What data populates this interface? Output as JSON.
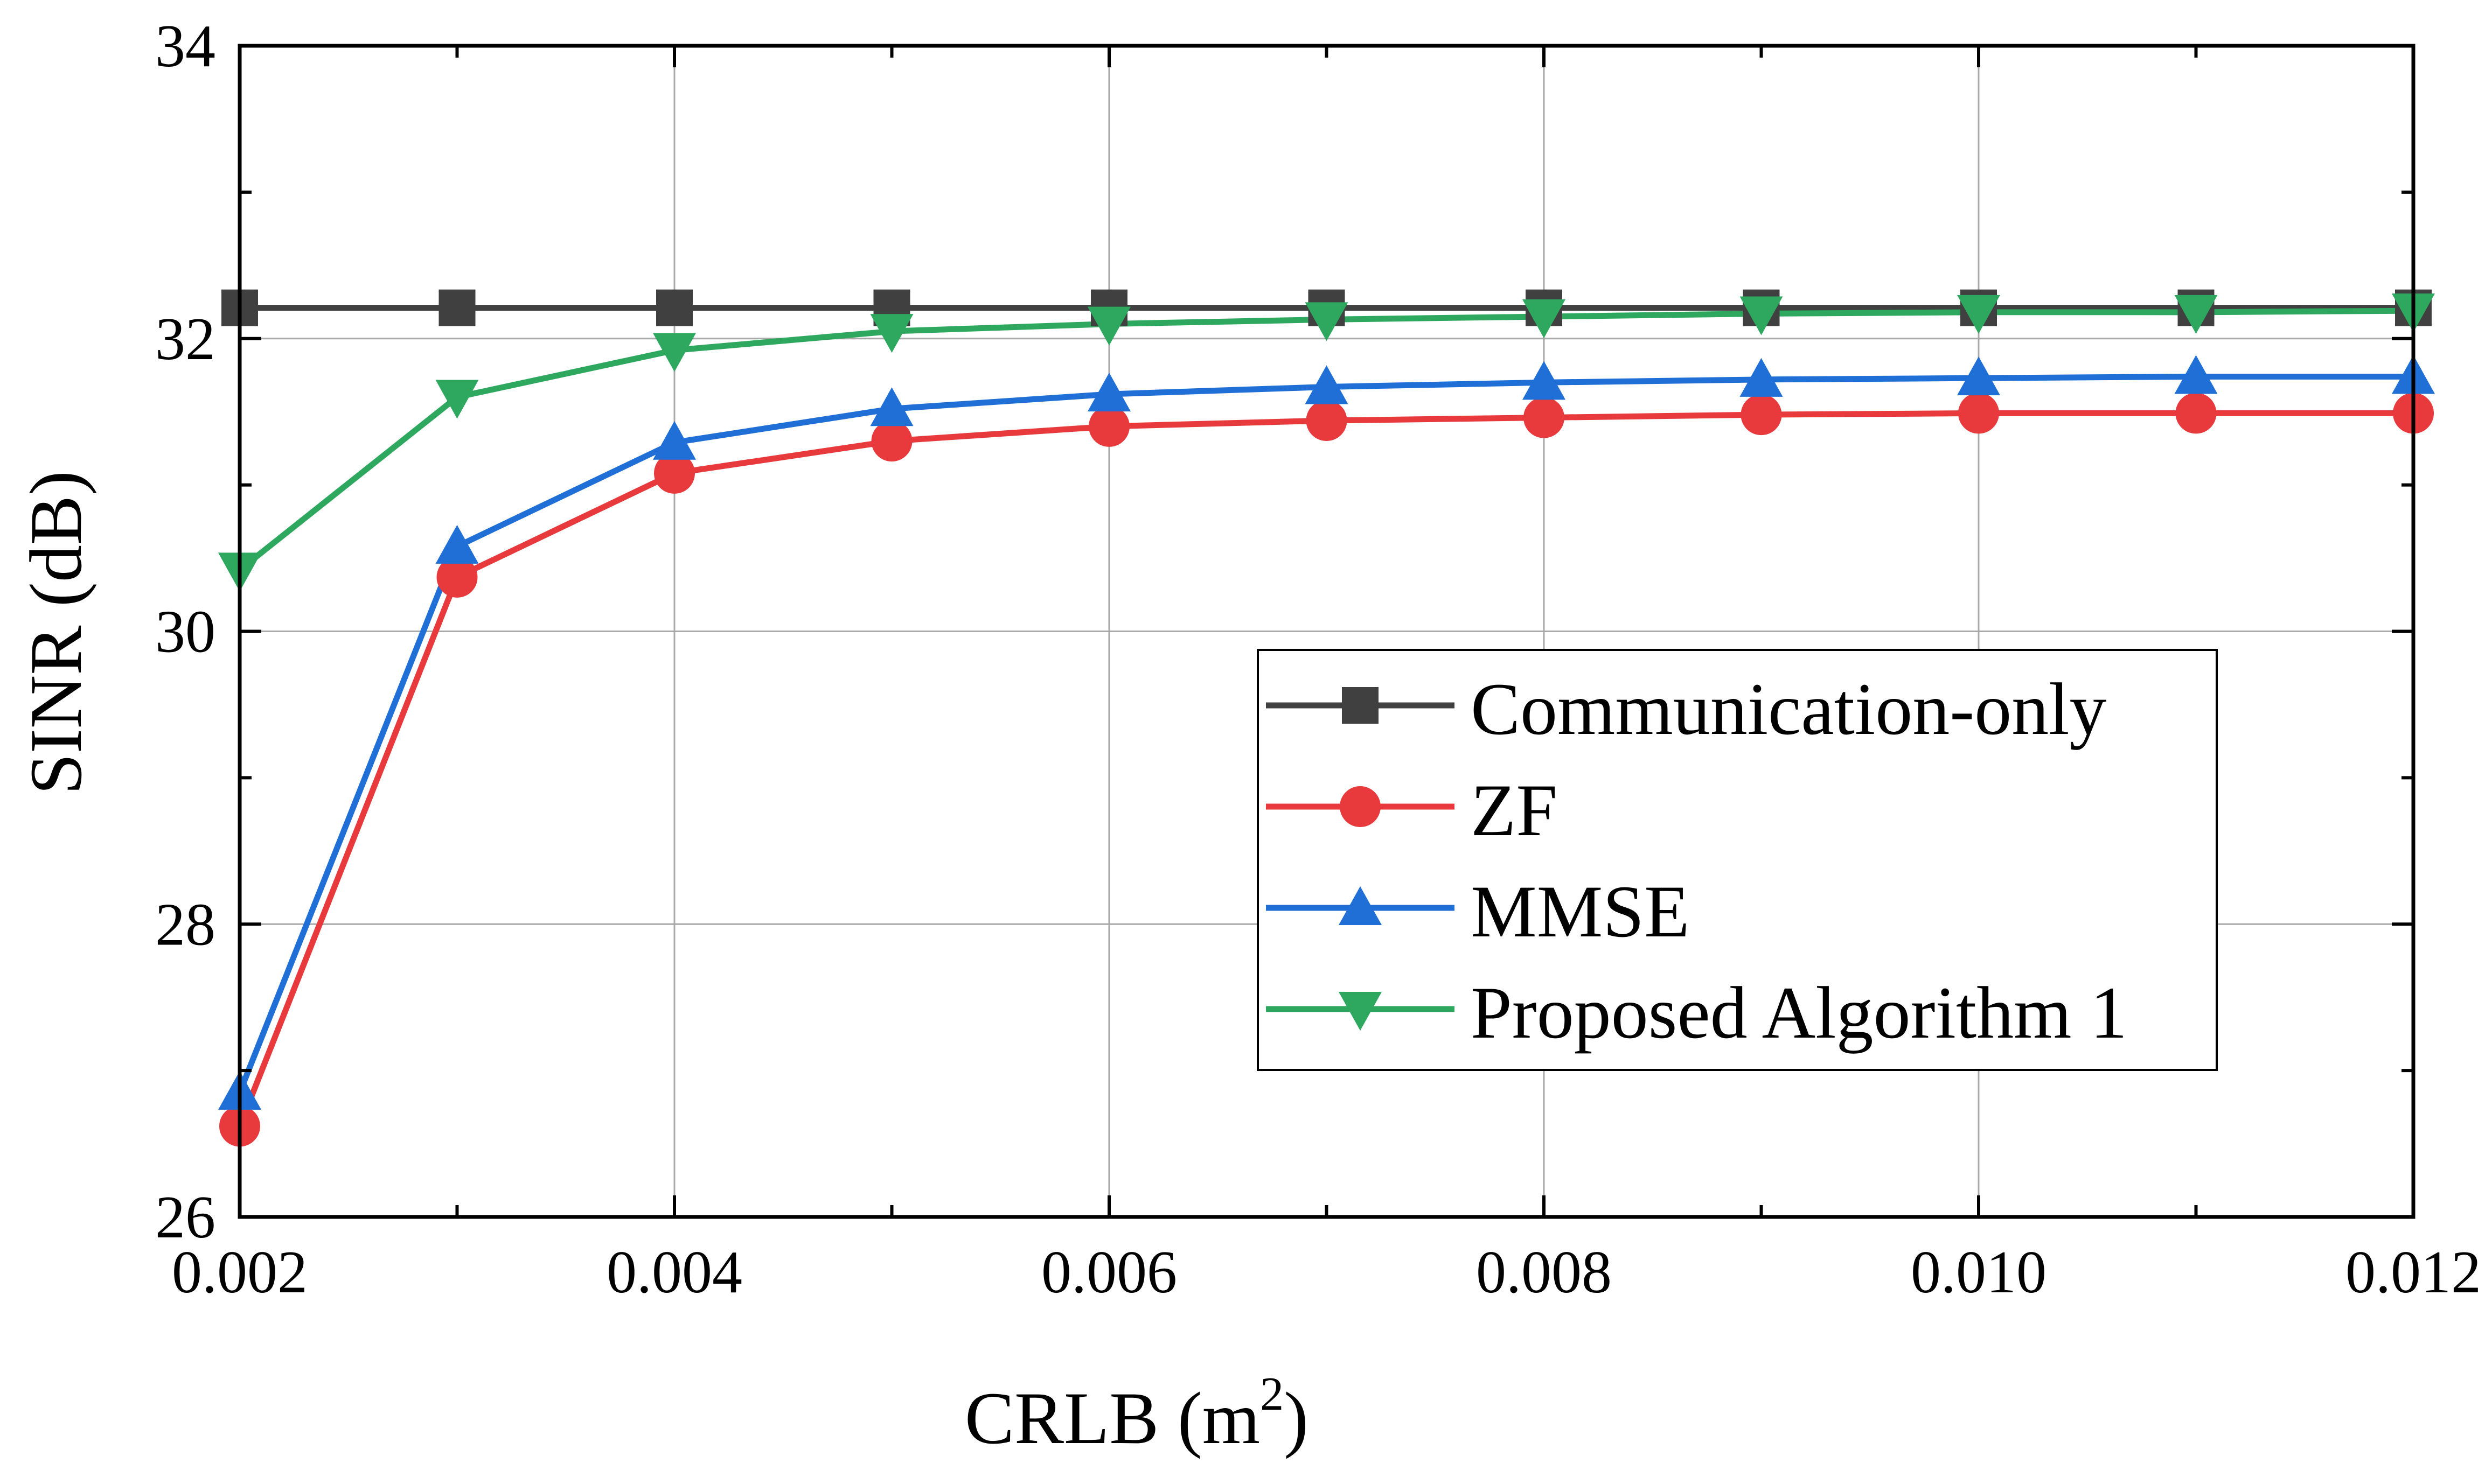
{
  "chart_data": {
    "type": "line",
    "title": "",
    "xlabel": "CRLB (m",
    "xlabel_sup": "2",
    "xlabel_tail": ")",
    "ylabel": "SINR (dB)",
    "xlim": [
      0.002,
      0.012
    ],
    "ylim": [
      26,
      34
    ],
    "grid": true,
    "x": [
      0.002,
      0.003,
      0.004,
      0.005,
      0.006,
      0.007,
      0.008,
      0.009,
      0.01,
      0.011,
      0.012
    ],
    "xticks": [
      0.002,
      0.004,
      0.006,
      0.008,
      0.01,
      0.012
    ],
    "xtick_labels": [
      "0.002",
      "0.004",
      "0.006",
      "0.008",
      "0.010",
      "0.012"
    ],
    "yticks": [
      26,
      28,
      30,
      32,
      34
    ],
    "ytick_labels": [
      "26",
      "28",
      "30",
      "32",
      "34"
    ],
    "legend_position": "center-right",
    "series": [
      {
        "name": "Communication-only",
        "color": "#404040",
        "marker": "square",
        "values": [
          32.21,
          32.21,
          32.21,
          32.21,
          32.21,
          32.21,
          32.21,
          32.21,
          32.21,
          32.21,
          32.21
        ]
      },
      {
        "name": "ZF",
        "color": "#e8393c",
        "marker": "circle",
        "values": [
          26.62,
          30.37,
          31.08,
          31.3,
          31.4,
          31.44,
          31.46,
          31.48,
          31.49,
          31.49,
          31.49
        ]
      },
      {
        "name": "MMSE",
        "color": "#1f6fd6",
        "marker": "triangle-up",
        "values": [
          26.85,
          30.58,
          31.29,
          31.52,
          31.62,
          31.67,
          31.7,
          31.72,
          31.73,
          31.74,
          31.74
        ]
      },
      {
        "name": "Proposed Algorithm 1",
        "color": "#2ea85f",
        "marker": "triangle-down",
        "values": [
          30.42,
          31.6,
          31.92,
          32.05,
          32.1,
          32.13,
          32.15,
          32.17,
          32.18,
          32.18,
          32.19
        ]
      }
    ]
  }
}
